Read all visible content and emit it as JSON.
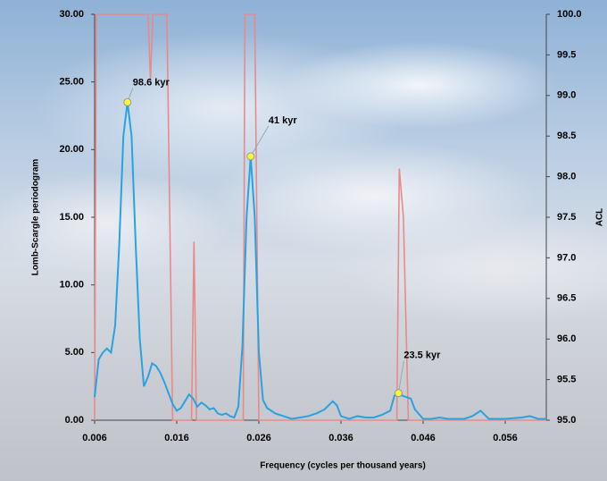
{
  "chart_data": {
    "type": "line",
    "x_label": "Frequency (cycles per thousand years)",
    "y_label": "Lomb-Scargle periodogram",
    "y2_label": "ACL",
    "xlim": [
      0.006,
      0.061
    ],
    "xticks": [
      0.006,
      0.016,
      0.026,
      0.036,
      0.046,
      0.056
    ],
    "ylim": [
      0,
      30
    ],
    "yticks": [
      {
        "value": 0,
        "label": "0.00"
      },
      {
        "value": 5,
        "label": "5.00"
      },
      {
        "value": 10,
        "label": "10.00"
      },
      {
        "value": 15,
        "label": "15.00"
      },
      {
        "value": 20,
        "label": "20.00"
      },
      {
        "value": 25,
        "label": "25.00"
      },
      {
        "value": 30,
        "label": "30.00"
      }
    ],
    "y2lim": [
      95,
      100
    ],
    "y2ticks": [
      {
        "value": 95,
        "label": "95.0"
      },
      95.5,
      {
        "value": 96,
        "label": "96.0"
      },
      96.5,
      {
        "value": 97,
        "label": "97.0"
      },
      97.5,
      {
        "value": 98,
        "label": "98.0"
      },
      98.5,
      {
        "value": 99,
        "label": "99.0"
      },
      99.5,
      {
        "value": 100,
        "label": "100.0"
      }
    ],
    "series": [
      {
        "color": "#e88a8a",
        "axis": "y2",
        "x": [
          0.006,
          0.0062,
          0.0125,
          0.0128,
          0.0131,
          0.0148,
          0.0155,
          0.0178,
          0.0181,
          0.0184,
          0.0241,
          0.0243,
          0.0255,
          0.026,
          0.0428,
          0.0431,
          0.0436,
          0.0442,
          0.061
        ],
        "values": [
          95,
          100,
          100,
          99.2,
          100,
          100,
          95,
          95,
          97.2,
          95,
          95,
          100,
          100,
          95,
          95,
          98.1,
          97.5,
          95,
          95
        ]
      },
      {
        "color": "#29a3e0",
        "x": [
          0.006,
          0.0065,
          0.007,
          0.0075,
          0.008,
          0.0085,
          0.009,
          0.0095,
          0.01,
          0.0105,
          0.011,
          0.0115,
          0.012,
          0.0125,
          0.013,
          0.0135,
          0.014,
          0.0145,
          0.015,
          0.0155,
          0.016,
          0.0165,
          0.017,
          0.0175,
          0.018,
          0.0185,
          0.019,
          0.0195,
          0.02,
          0.0205,
          0.021,
          0.0215,
          0.022,
          0.0225,
          0.023,
          0.0235,
          0.024,
          0.0245,
          0.025,
          0.0255,
          0.026,
          0.0265,
          0.027,
          0.028,
          0.029,
          0.03,
          0.031,
          0.032,
          0.033,
          0.034,
          0.035,
          0.0355,
          0.036,
          0.037,
          0.038,
          0.039,
          0.04,
          0.041,
          0.042,
          0.0425,
          0.043,
          0.0435,
          0.044,
          0.0445,
          0.045,
          0.046,
          0.047,
          0.048,
          0.049,
          0.05,
          0.051,
          0.052,
          0.053,
          0.0535,
          0.054,
          0.056,
          0.058,
          0.059,
          0.06,
          0.061
        ],
        "values": [
          1.7,
          4.5,
          5.0,
          5.3,
          5.0,
          7,
          13,
          21,
          23.5,
          21,
          13,
          6,
          2.5,
          3.2,
          4.2,
          4.0,
          3.5,
          2.8,
          2.0,
          1.2,
          0.7,
          0.9,
          1.4,
          1.9,
          1.6,
          1.0,
          1.3,
          1.1,
          0.8,
          0.9,
          0.5,
          0.4,
          0.5,
          0.3,
          0.2,
          1.0,
          5.5,
          15,
          19.5,
          15,
          5,
          1.5,
          0.9,
          0.5,
          0.3,
          0.1,
          0.2,
          0.3,
          0.5,
          0.8,
          1.4,
          1.1,
          0.3,
          0.1,
          0.3,
          0.2,
          0.2,
          0.4,
          0.7,
          1.8,
          2.0,
          1.8,
          1.7,
          1.6,
          0.8,
          0.1,
          0.1,
          0.2,
          0.1,
          0.1,
          0.1,
          0.3,
          0.7,
          0.4,
          0.1,
          0.1,
          0.2,
          0.3,
          0.1,
          0.1
        ]
      }
    ],
    "annotations": [
      {
        "text": "98.6 kyr",
        "x": 0.01,
        "y": 23.5
      },
      {
        "text": "41 kyr",
        "x": 0.025,
        "y": 19.5
      },
      {
        "text": "23.5 kyr",
        "x": 0.043,
        "y": 2.0
      }
    ]
  }
}
